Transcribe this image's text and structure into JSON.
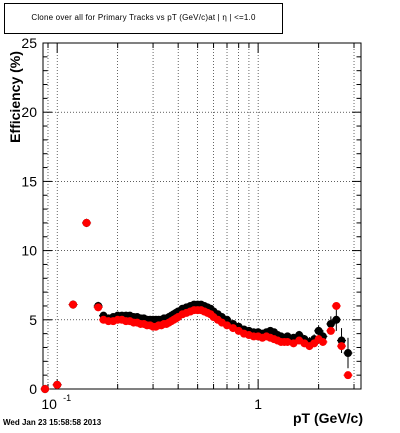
{
  "chart_data": {
    "type": "scatter",
    "title": "Clone  over all for Primary Tracks vs pT (GeV/c)at | η | <=1.0",
    "xlabel": "pT (GeV/c)",
    "ylabel": "Efficiency (%)",
    "x_scale": "log",
    "xlim": [
      0.085,
      3.25
    ],
    "ylim": [
      0,
      25
    ],
    "grid": true,
    "legend": "none",
    "x_major_ticks": [
      {
        "value": 0.1,
        "base": "10",
        "exp": "-1"
      },
      {
        "value": 1,
        "base": "1",
        "exp": ""
      }
    ],
    "y_ticks": [
      0,
      5,
      10,
      15,
      20,
      25
    ],
    "footer": "Wed Jan 23 15:58:58 2013",
    "series": [
      {
        "color": "#000000",
        "points": [
          [
            0.087,
            0.0,
            0.3
          ],
          [
            0.1,
            0.3,
            0.25
          ],
          [
            0.12,
            6.1,
            0.3
          ],
          [
            0.14,
            12.0,
            0.3
          ],
          [
            0.16,
            6.0,
            0.3
          ],
          [
            0.17,
            5.3,
            0.2
          ],
          [
            0.18,
            5.1,
            0.15
          ],
          [
            0.19,
            5.2,
            0.12
          ],
          [
            0.2,
            5.3,
            0.12
          ],
          [
            0.21,
            5.3,
            0.12
          ],
          [
            0.22,
            5.3,
            0.1
          ],
          [
            0.23,
            5.3,
            0.1
          ],
          [
            0.24,
            5.2,
            0.1
          ],
          [
            0.25,
            5.2,
            0.1
          ],
          [
            0.26,
            5.1,
            0.1
          ],
          [
            0.27,
            5.1,
            0.1
          ],
          [
            0.28,
            5.0,
            0.1
          ],
          [
            0.29,
            5.0,
            0.1
          ],
          [
            0.3,
            5.0,
            0.1
          ],
          [
            0.31,
            5.0,
            0.1
          ],
          [
            0.32,
            5.0,
            0.1
          ],
          [
            0.33,
            5.0,
            0.1
          ],
          [
            0.34,
            5.1,
            0.1
          ],
          [
            0.35,
            5.1,
            0.1
          ],
          [
            0.36,
            5.2,
            0.1
          ],
          [
            0.37,
            5.3,
            0.1
          ],
          [
            0.38,
            5.4,
            0.1
          ],
          [
            0.39,
            5.5,
            0.1
          ],
          [
            0.4,
            5.6,
            0.1
          ],
          [
            0.42,
            5.8,
            0.1
          ],
          [
            0.44,
            5.9,
            0.1
          ],
          [
            0.46,
            6.0,
            0.1
          ],
          [
            0.48,
            6.1,
            0.1
          ],
          [
            0.5,
            6.1,
            0.1
          ],
          [
            0.52,
            6.1,
            0.1
          ],
          [
            0.54,
            6.0,
            0.1
          ],
          [
            0.56,
            5.9,
            0.1
          ],
          [
            0.58,
            5.8,
            0.1
          ],
          [
            0.6,
            5.6,
            0.1
          ],
          [
            0.63,
            5.4,
            0.1
          ],
          [
            0.66,
            5.2,
            0.12
          ],
          [
            0.7,
            5.0,
            0.12
          ],
          [
            0.75,
            4.7,
            0.15
          ],
          [
            0.8,
            4.5,
            0.15
          ],
          [
            0.85,
            4.3,
            0.15
          ],
          [
            0.9,
            4.2,
            0.15
          ],
          [
            0.95,
            4.1,
            0.15
          ],
          [
            1.0,
            4.1,
            0.15
          ],
          [
            1.05,
            4.0,
            0.2
          ],
          [
            1.1,
            4.1,
            0.2
          ],
          [
            1.15,
            4.2,
            0.2
          ],
          [
            1.2,
            4.1,
            0.2
          ],
          [
            1.25,
            3.9,
            0.2
          ],
          [
            1.3,
            3.8,
            0.2
          ],
          [
            1.35,
            3.7,
            0.2
          ],
          [
            1.4,
            3.8,
            0.25
          ],
          [
            1.5,
            3.7,
            0.25
          ],
          [
            1.6,
            3.9,
            0.3
          ],
          [
            1.7,
            3.6,
            0.3
          ],
          [
            1.8,
            3.4,
            0.35
          ],
          [
            1.9,
            3.6,
            0.35
          ],
          [
            2.0,
            4.2,
            0.4
          ],
          [
            2.1,
            3.8,
            0.45
          ],
          [
            2.3,
            4.7,
            0.55
          ],
          [
            2.45,
            5.0,
            0.8
          ],
          [
            2.6,
            3.5,
            0.9
          ],
          [
            2.8,
            2.6,
            1.1
          ]
        ]
      },
      {
        "color": "#ff0000",
        "points": [
          [
            0.087,
            0.0
          ],
          [
            0.1,
            0.3
          ],
          [
            0.12,
            6.1
          ],
          [
            0.14,
            12.0
          ],
          [
            0.16,
            5.9
          ],
          [
            0.17,
            5.0
          ],
          [
            0.18,
            4.9
          ],
          [
            0.19,
            4.9
          ],
          [
            0.2,
            5.0
          ],
          [
            0.21,
            5.0
          ],
          [
            0.22,
            4.9
          ],
          [
            0.23,
            4.9
          ],
          [
            0.24,
            4.8
          ],
          [
            0.25,
            4.8
          ],
          [
            0.26,
            4.7
          ],
          [
            0.27,
            4.7
          ],
          [
            0.28,
            4.6
          ],
          [
            0.29,
            4.6
          ],
          [
            0.3,
            4.5
          ],
          [
            0.31,
            4.5
          ],
          [
            0.32,
            4.6
          ],
          [
            0.33,
            4.6
          ],
          [
            0.34,
            4.7
          ],
          [
            0.35,
            4.7
          ],
          [
            0.36,
            4.8
          ],
          [
            0.37,
            4.9
          ],
          [
            0.38,
            5.0
          ],
          [
            0.39,
            5.1
          ],
          [
            0.4,
            5.2
          ],
          [
            0.42,
            5.4
          ],
          [
            0.44,
            5.5
          ],
          [
            0.46,
            5.6
          ],
          [
            0.48,
            5.7
          ],
          [
            0.5,
            5.7
          ],
          [
            0.52,
            5.7
          ],
          [
            0.54,
            5.6
          ],
          [
            0.56,
            5.5
          ],
          [
            0.58,
            5.4
          ],
          [
            0.6,
            5.2
          ],
          [
            0.63,
            5.0
          ],
          [
            0.66,
            4.8
          ],
          [
            0.7,
            4.6
          ],
          [
            0.75,
            4.4
          ],
          [
            0.8,
            4.2
          ],
          [
            0.85,
            4.0
          ],
          [
            0.9,
            3.9
          ],
          [
            0.95,
            3.8
          ],
          [
            1.0,
            3.8
          ],
          [
            1.05,
            3.7
          ],
          [
            1.1,
            3.8
          ],
          [
            1.15,
            3.7
          ],
          [
            1.2,
            3.6
          ],
          [
            1.25,
            3.5
          ],
          [
            1.3,
            3.4
          ],
          [
            1.35,
            3.4
          ],
          [
            1.4,
            3.4
          ],
          [
            1.5,
            3.3
          ],
          [
            1.6,
            3.5
          ],
          [
            1.7,
            3.3
          ],
          [
            1.8,
            3.1
          ],
          [
            1.9,
            3.3
          ],
          [
            2.0,
            3.6
          ],
          [
            2.1,
            3.4
          ],
          [
            2.3,
            4.2
          ],
          [
            2.45,
            6.0
          ],
          [
            2.6,
            3.1
          ],
          [
            2.8,
            1.0
          ]
        ]
      }
    ]
  }
}
